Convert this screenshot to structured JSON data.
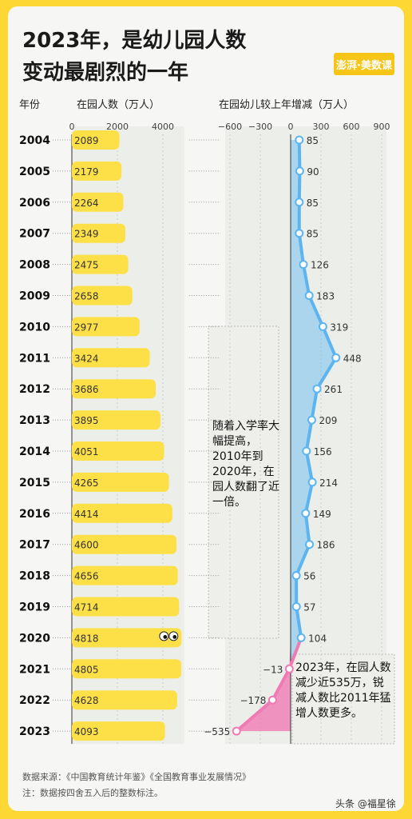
{
  "title_line1": "2023年，是幼儿园人数",
  "title_line2": "变动最剧烈的一年",
  "logo_text": "澎湃·美数课",
  "header_year": "年份",
  "header_enrolled": "在园人数（万人）",
  "header_change": "在园幼儿较上年增减（万人）",
  "note_growth": "随着入学率大幅提高，2010年到2020年，在园人数翻了近一倍。",
  "note_decline": "2023年，在园人数减少近535万，锐减人数比2011年猛增人数更多。",
  "source_line": "数据来源：《中国教育统计年鉴》《全国教育事业发展情况》",
  "note_line": "注：数据按四舍五入后的整数标注。",
  "watermark": "头条 @福星徐",
  "colors": {
    "bar": "#fde047",
    "increase": "#5cb5f0",
    "decrease": "#f07ab4",
    "background": "#fdd835"
  },
  "chart_data": [
    {
      "type": "bar",
      "orientation": "horizontal",
      "title": "在园人数（万人）",
      "categories": [
        "2004",
        "2005",
        "2006",
        "2007",
        "2008",
        "2009",
        "2010",
        "2011",
        "2012",
        "2013",
        "2014",
        "2015",
        "2016",
        "2017",
        "2018",
        "2019",
        "2020",
        "2021",
        "2022",
        "2023"
      ],
      "values": [
        2089,
        2179,
        2264,
        2349,
        2475,
        2658,
        2977,
        3424,
        3686,
        3895,
        4051,
        4265,
        4414,
        4600,
        4656,
        4714,
        4818,
        4805,
        4628,
        4093
      ],
      "xlim": [
        0,
        4800
      ],
      "ticks": [
        0,
        2000,
        4000
      ]
    },
    {
      "type": "area",
      "title": "在园幼儿较上年增减（万人）",
      "categories": [
        "2004",
        "2005",
        "2006",
        "2007",
        "2008",
        "2009",
        "2010",
        "2011",
        "2012",
        "2013",
        "2014",
        "2015",
        "2016",
        "2017",
        "2018",
        "2019",
        "2020",
        "2021",
        "2022",
        "2023"
      ],
      "values": [
        85,
        90,
        85,
        85,
        126,
        183,
        319,
        448,
        261,
        209,
        156,
        214,
        149,
        186,
        56,
        57,
        104,
        -13,
        -178,
        -535
      ],
      "xlim": [
        -600,
        900
      ],
      "ticks": [
        -600,
        -300,
        0,
        300,
        600,
        900
      ]
    }
  ]
}
